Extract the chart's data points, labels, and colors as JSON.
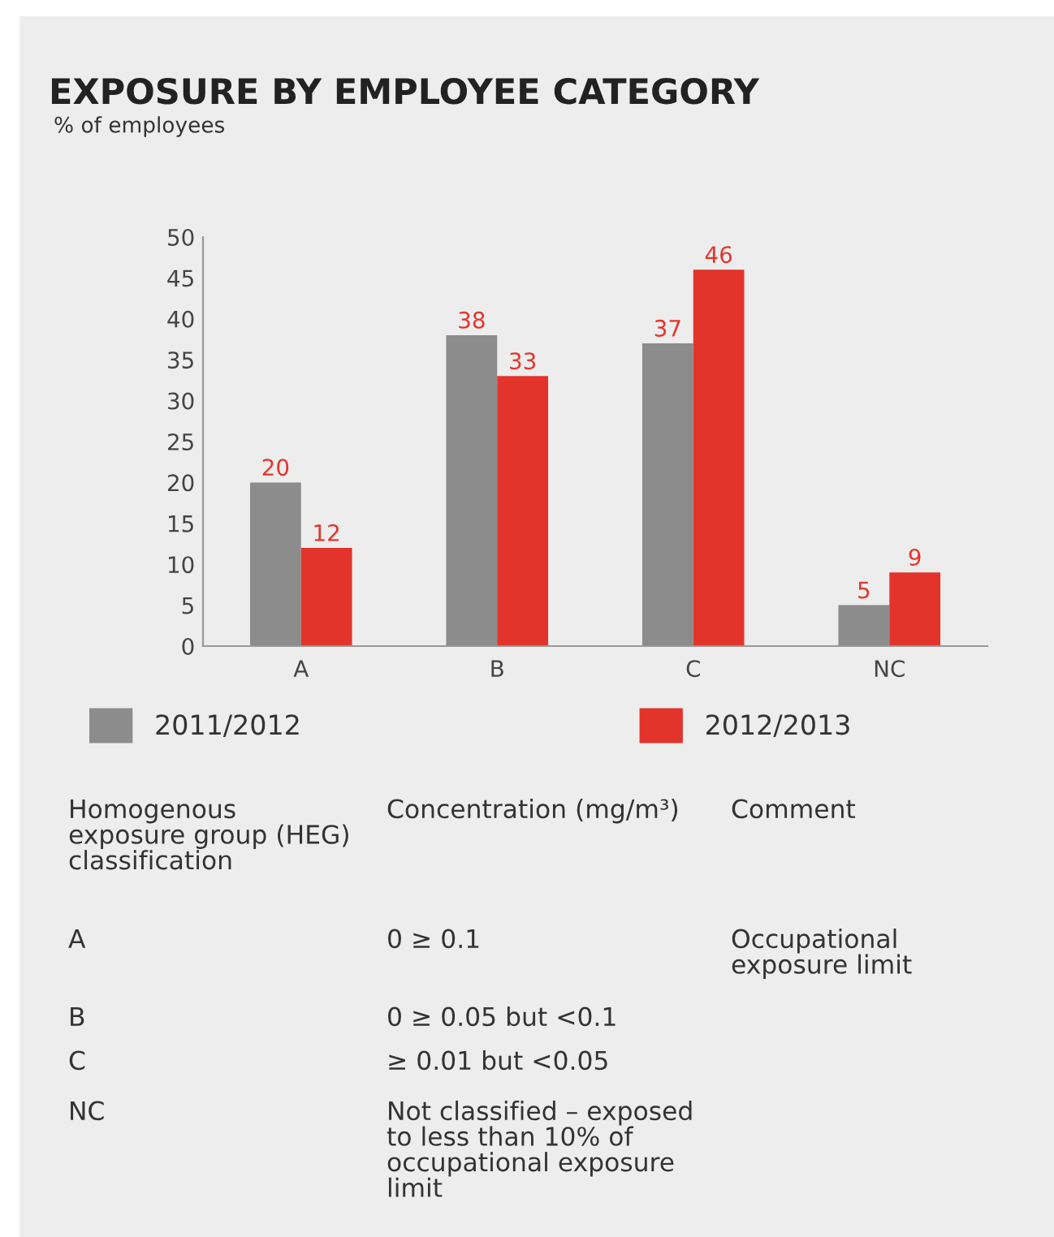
{
  "chart_data": {
    "type": "bar",
    "title": "EXPOSURE BY EMPLOYEE CATEGORY",
    "subtitle": "% of employees",
    "categories": [
      "A",
      "B",
      "C",
      "NC"
    ],
    "series": [
      {
        "name": "2011/2012",
        "color": "#8c8c8c",
        "values": [
          20,
          38,
          37,
          5
        ]
      },
      {
        "name": "2012/2013",
        "color": "#e3342b",
        "values": [
          12,
          33,
          46,
          9
        ]
      }
    ],
    "ylim": [
      0,
      50
    ],
    "yticks": [
      0,
      5,
      10,
      15,
      20,
      25,
      30,
      35,
      40,
      45,
      50
    ],
    "data_labels": true,
    "legend": "bottom",
    "grid": false,
    "annotations": [
      "Homogenous\nexposure group (HEG)\nclassification",
      "Concentration (mg/m³)",
      "Comment",
      "A",
      "0 ≥ 0.1",
      "Occupational\nexposure limit",
      "B",
      "0 ≥ 0.05 but <0.1",
      "C",
      "≥ 0.01 but <0.05",
      "NC",
      "Not classified – exposed\nto less than 10% of\noccupational exposure\nlimit"
    ]
  }
}
